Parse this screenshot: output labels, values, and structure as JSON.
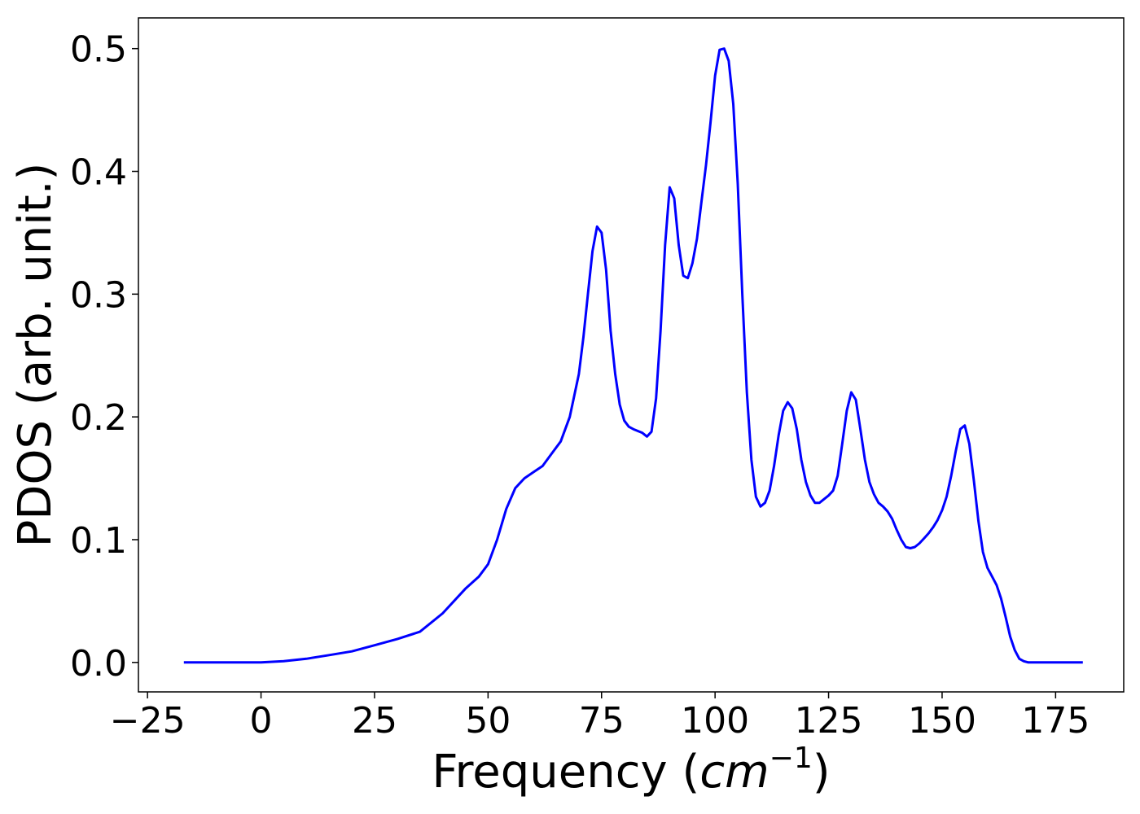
{
  "chart_data": {
    "type": "line",
    "xlabel": "Frequency (cm⁻¹)",
    "xlabel_parts": {
      "prefix": "Frequency (",
      "unit_base": "cm",
      "unit_exp": "−1",
      "suffix": ")"
    },
    "ylabel": "PDOS (arb. unit.)",
    "xlim": [
      -27,
      190
    ],
    "ylim": [
      -0.024,
      0.525
    ],
    "xticks": [
      -25,
      0,
      25,
      50,
      75,
      100,
      125,
      150,
      175
    ],
    "xtick_labels": [
      "−25",
      "0",
      "25",
      "50",
      "75",
      "100",
      "125",
      "150",
      "175"
    ],
    "yticks": [
      0.0,
      0.1,
      0.2,
      0.3,
      0.4,
      0.5
    ],
    "ytick_labels": [
      "0.0",
      "0.1",
      "0.2",
      "0.3",
      "0.4",
      "0.5"
    ],
    "grid": false,
    "series": [
      {
        "color": "#0000ff",
        "x": [
          -17,
          0,
          5,
          10,
          15,
          20,
          25,
          30,
          35,
          40,
          45,
          48,
          50,
          52,
          54,
          56,
          58,
          60,
          62,
          64,
          66,
          68,
          70,
          71,
          72,
          73,
          74,
          75,
          76,
          77,
          78,
          79,
          80,
          81,
          82,
          84,
          85,
          86,
          87,
          88,
          89,
          90,
          91,
          92,
          93,
          94,
          95,
          96,
          97,
          98,
          99,
          100,
          101,
          102,
          103,
          104,
          105,
          106,
          107,
          108,
          109,
          110,
          111,
          112,
          113,
          114,
          115,
          116,
          117,
          118,
          119,
          120,
          121,
          122,
          123,
          124,
          125,
          126,
          127,
          128,
          129,
          130,
          131,
          132,
          133,
          134,
          135,
          136,
          137,
          138,
          139,
          140,
          141,
          142,
          143,
          144,
          145,
          146,
          147,
          148,
          149,
          150,
          151,
          152,
          153,
          154,
          155,
          156,
          157,
          158,
          159,
          160,
          161,
          162,
          163,
          164,
          165,
          166,
          167,
          168,
          169,
          170,
          175,
          181
        ],
        "y": [
          0.0,
          0.0,
          0.001,
          0.003,
          0.006,
          0.009,
          0.014,
          0.019,
          0.025,
          0.04,
          0.06,
          0.07,
          0.08,
          0.1,
          0.125,
          0.142,
          0.15,
          0.155,
          0.16,
          0.17,
          0.18,
          0.2,
          0.235,
          0.265,
          0.3,
          0.335,
          0.355,
          0.35,
          0.32,
          0.27,
          0.235,
          0.21,
          0.197,
          0.192,
          0.19,
          0.187,
          0.184,
          0.188,
          0.215,
          0.27,
          0.34,
          0.387,
          0.378,
          0.34,
          0.315,
          0.313,
          0.325,
          0.345,
          0.375,
          0.405,
          0.44,
          0.478,
          0.499,
          0.5,
          0.49,
          0.455,
          0.39,
          0.3,
          0.22,
          0.165,
          0.135,
          0.127,
          0.13,
          0.14,
          0.16,
          0.185,
          0.205,
          0.212,
          0.207,
          0.19,
          0.165,
          0.147,
          0.136,
          0.13,
          0.13,
          0.133,
          0.136,
          0.14,
          0.152,
          0.178,
          0.205,
          0.22,
          0.214,
          0.19,
          0.165,
          0.147,
          0.137,
          0.13,
          0.127,
          0.123,
          0.117,
          0.108,
          0.1,
          0.094,
          0.093,
          0.094,
          0.097,
          0.101,
          0.105,
          0.11,
          0.116,
          0.124,
          0.135,
          0.152,
          0.172,
          0.19,
          0.193,
          0.178,
          0.148,
          0.115,
          0.09,
          0.077,
          0.07,
          0.063,
          0.052,
          0.037,
          0.021,
          0.01,
          0.003,
          0.001,
          0.0,
          0.0,
          0.0,
          0.0
        ]
      }
    ]
  }
}
